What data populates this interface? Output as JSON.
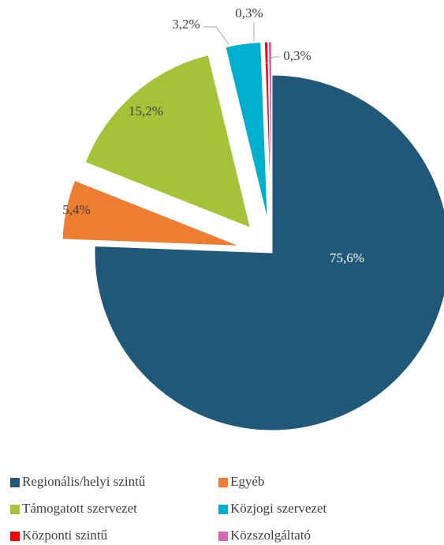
{
  "chart_data": {
    "type": "pie",
    "categories": [
      "Regionális/helyi szintű",
      "Egyéb",
      "Támogatott szervezet",
      "Közjogi szervezet",
      "Központi szintű",
      "Közszolgáltató"
    ],
    "values": [
      75.6,
      5.4,
      15.2,
      3.2,
      0.3,
      0.3
    ],
    "value_labels": [
      "75,6%",
      "5,4%",
      "15,2%",
      "3,2%",
      "0,3%",
      "0,3%"
    ],
    "colors": [
      "#1f5878",
      "#ed7d31",
      "#a5c238",
      "#00b0cc",
      "#ff0000",
      "#d966b3"
    ]
  }
}
